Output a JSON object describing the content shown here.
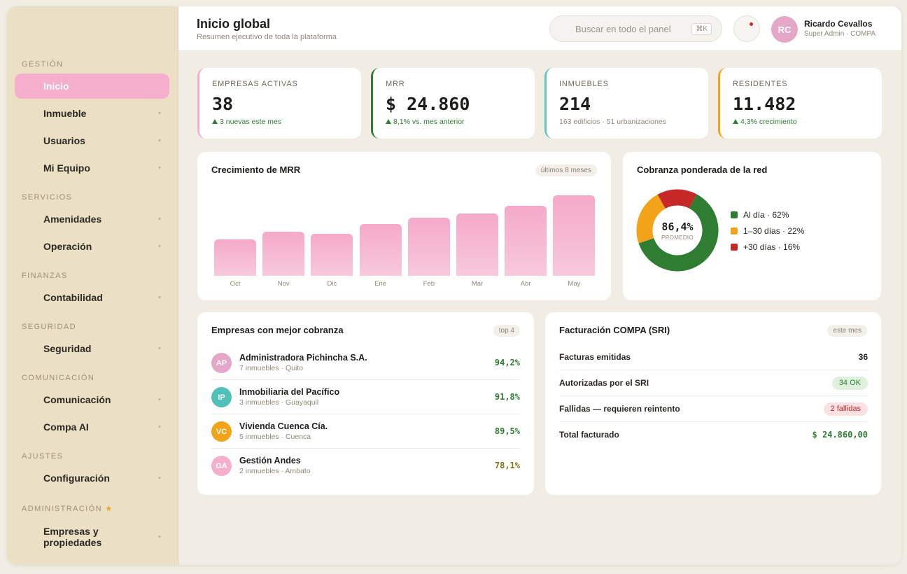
{
  "sidebar": {
    "sections": {
      "gestion": "GESTIÓN",
      "servicios": "SERVICIOS",
      "finanzas": "FINANZAS",
      "seguridad": "SEGURIDAD",
      "comunicacion": "COMUNICACIÓN",
      "ajustes": "AJUSTES",
      "administracion": "ADMINISTRACIÓN",
      "administracion_star": "★"
    },
    "items": {
      "inicio": "Inicio",
      "inmueble": "Inmueble",
      "usuarios": "Usuarios",
      "mi_equipo": "Mi Equipo",
      "amenidades": "Amenidades",
      "operacion": "Operación",
      "contabilidad": "Contabilidad",
      "seguridad": "Seguridad",
      "comunicacion": "Comunicación",
      "compa_ai": "Compa AI",
      "configuracion": "Configuración",
      "empresas_line1": "Empresas y",
      "empresas_line2": "propiedades"
    }
  },
  "header": {
    "title": "Inicio global",
    "subtitle": "Resumen ejecutivo de toda la plataforma",
    "search_placeholder": "Buscar en todo el panel",
    "search_shortcut": "⌘K",
    "user_initials": "RC",
    "user_name": "Ricardo Cevallos",
    "user_role": "Super Admin · COMPA"
  },
  "kpis": [
    {
      "label": "EMPRESAS ACTIVAS",
      "value": "38",
      "note": "3 nuevas este mes",
      "color": "#f5aecb"
    },
    {
      "label": "MRR",
      "value": "$ 24.860",
      "note": "8,1% vs. mes anterior",
      "color": "#2e7d32"
    },
    {
      "label": "INMUEBLES",
      "value": "214",
      "note": "163 edificios · 51 urbanizaciones",
      "color": "#5fc9c0"
    },
    {
      "label": "RESIDENTES",
      "value": "11.482",
      "note": "4,3% crecimiento",
      "color": "#f2a31a"
    }
  ],
  "mrr_chart": {
    "title": "Crecimiento de MRR",
    "range_label": "últimos 8 meses"
  },
  "chart_data": {
    "type": "bar",
    "categories": [
      "Oct",
      "Nov",
      "Dic",
      "Ene",
      "Feb",
      "Mar",
      "Abr",
      "May"
    ],
    "values": [
      52,
      63,
      60,
      74,
      83,
      89,
      100,
      115
    ],
    "ylim": [
      0,
      120
    ]
  },
  "donut": {
    "title": "Cobranza ponderada de la red",
    "center_value": "86,4%",
    "center_label": "PROMEDIO",
    "segments": [
      {
        "label": "Al día · 62%",
        "value": 62,
        "color": "#2e7d32"
      },
      {
        "label": "1–30 días · 22%",
        "value": 22,
        "color": "#f2a31a"
      },
      {
        "label": "+30 días · 16%",
        "value": 16,
        "color": "#c62828"
      }
    ]
  },
  "companies": {
    "title": "Empresas con mejor cobranza",
    "badge": "top 4",
    "rows": [
      {
        "initials": "AP",
        "name": "Administradora Pichincha S.A.",
        "sub": "7 inmuebles · Quito",
        "value": "94,2%",
        "color": "#e4a7c8"
      },
      {
        "initials": "IP",
        "name": "Inmobiliaria del Pacífico",
        "sub": "3 inmuebles · Guayaquil",
        "value": "91,8%",
        "color": "#4fc1b8"
      },
      {
        "initials": "VC",
        "name": "Vivienda Cuenca Cía.",
        "sub": "5 inmuebles · Cuenca",
        "value": "89,5%",
        "color": "#f2a31a"
      },
      {
        "initials": "GA",
        "name": "Gestión Andes",
        "sub": "2 inmuebles · Ambato",
        "value": "78,1%",
        "color": "#f5aecb"
      }
    ]
  },
  "billing": {
    "title": "Facturación COMPA (SRI)",
    "badge": "este mes",
    "rows": [
      {
        "label": "Facturas emitidas",
        "value": "36"
      },
      {
        "label": "Autorizadas por el SRI",
        "value": "34 OK"
      },
      {
        "label": "Fallidas — requieren reintento",
        "value": "2 fallidas"
      },
      {
        "label": "Total facturado",
        "value": "$ 24.860,00"
      }
    ]
  }
}
